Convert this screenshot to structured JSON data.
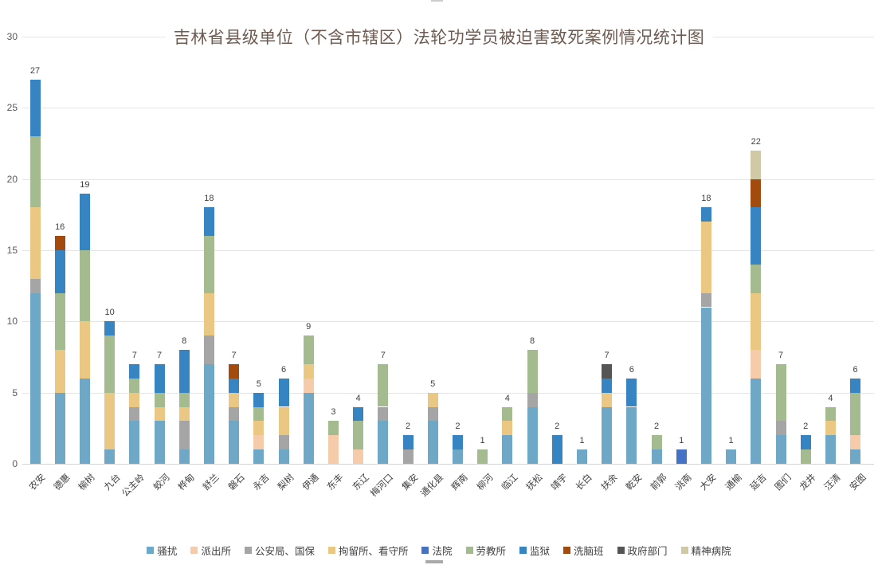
{
  "chart_data": {
    "type": "bar",
    "stacked": true,
    "title": "吉林省县级单位（不含市辖区）法轮功学员被迫害致死案例情况统计图",
    "xlabel": "",
    "ylabel": "",
    "ylim": [
      0,
      30
    ],
    "yticks": [
      0,
      5,
      10,
      15,
      20,
      25,
      30
    ],
    "grid": "horizontal",
    "legend_position": "bottom",
    "categories": [
      "农安",
      "德惠",
      "榆树",
      "九台",
      "公主岭",
      "蛟河",
      "桦甸",
      "舒兰",
      "磐石",
      "永吉",
      "梨树",
      "伊通",
      "东丰",
      "东辽",
      "梅河口",
      "集安",
      "通化县",
      "辉南",
      "柳河",
      "临江",
      "抚松",
      "靖宇",
      "长白",
      "扶余",
      "乾安",
      "前郭",
      "洮南",
      "大安",
      "通榆",
      "延吉",
      "图们",
      "龙井",
      "汪清",
      "安图"
    ],
    "totals": [
      27,
      16,
      19,
      10,
      7,
      7,
      8,
      18,
      7,
      5,
      6,
      9,
      3,
      4,
      7,
      2,
      5,
      2,
      1,
      4,
      8,
      2,
      1,
      7,
      6,
      2,
      1,
      18,
      1,
      22,
      7,
      2,
      4,
      6
    ],
    "series": [
      {
        "name": "骚扰",
        "color": "#6fa8c6",
        "values": [
          12,
          5,
          6,
          1,
          3,
          3,
          1,
          7,
          3,
          1,
          1,
          5,
          0,
          0,
          3,
          0,
          3,
          1,
          0,
          2,
          4,
          0,
          1,
          4,
          4,
          1,
          0,
          11,
          1,
          6,
          2,
          0,
          2,
          1
        ]
      },
      {
        "name": "派出所",
        "color": "#f6cbaa",
        "values": [
          0,
          0,
          0,
          0,
          0,
          0,
          0,
          0,
          0,
          1,
          0,
          1,
          2,
          1,
          0,
          0,
          0,
          0,
          0,
          0,
          0,
          0,
          0,
          0,
          0,
          0,
          0,
          0,
          0,
          2,
          0,
          0,
          0,
          1
        ]
      },
      {
        "name": "公安局、国保",
        "color": "#a5a5a5",
        "values": [
          1,
          0,
          0,
          0,
          1,
          0,
          2,
          2,
          1,
          0,
          1,
          0,
          0,
          0,
          1,
          1,
          1,
          0,
          0,
          0,
          1,
          0,
          0,
          0,
          0,
          0,
          0,
          1,
          0,
          0,
          1,
          0,
          0,
          0
        ]
      },
      {
        "name": "拘留所、看守所",
        "color": "#eac883",
        "values": [
          5,
          3,
          4,
          4,
          1,
          1,
          1,
          3,
          1,
          1,
          2,
          1,
          0,
          0,
          0,
          0,
          1,
          0,
          0,
          1,
          0,
          0,
          0,
          1,
          0,
          0,
          0,
          5,
          0,
          4,
          0,
          0,
          1,
          0
        ]
      },
      {
        "name": "法院",
        "color": "#4472c4",
        "values": [
          0,
          0,
          0,
          0,
          0,
          0,
          0,
          0,
          0,
          0,
          0,
          0,
          0,
          0,
          0,
          0,
          0,
          0,
          0,
          0,
          0,
          0,
          0,
          0,
          0,
          0,
          1,
          0,
          0,
          0,
          0,
          0,
          0,
          0
        ]
      },
      {
        "name": "劳教所",
        "color": "#a3bb8f",
        "values": [
          5,
          4,
          5,
          4,
          1,
          1,
          1,
          4,
          0,
          1,
          0,
          2,
          1,
          2,
          3,
          0,
          0,
          0,
          1,
          1,
          3,
          0,
          0,
          0,
          0,
          1,
          0,
          0,
          0,
          2,
          4,
          1,
          1,
          3
        ]
      },
      {
        "name": "监狱",
        "color": "#3784c3",
        "values": [
          4,
          3,
          4,
          1,
          1,
          2,
          3,
          2,
          1,
          1,
          2,
          0,
          0,
          1,
          0,
          1,
          0,
          1,
          0,
          0,
          0,
          2,
          0,
          1,
          2,
          0,
          0,
          1,
          0,
          4,
          0,
          1,
          0,
          1
        ]
      },
      {
        "name": "洗脑班",
        "color": "#a34b0d",
        "values": [
          0,
          1,
          0,
          0,
          0,
          0,
          0,
          0,
          1,
          0,
          0,
          0,
          0,
          0,
          0,
          0,
          0,
          0,
          0,
          0,
          0,
          0,
          0,
          0,
          0,
          0,
          0,
          0,
          0,
          2,
          0,
          0,
          0,
          0
        ]
      },
      {
        "name": "政府部门",
        "color": "#555555",
        "values": [
          0,
          0,
          0,
          0,
          0,
          0,
          0,
          0,
          0,
          0,
          0,
          0,
          0,
          0,
          0,
          0,
          0,
          0,
          0,
          0,
          0,
          0,
          0,
          1,
          0,
          0,
          0,
          0,
          0,
          0,
          0,
          0,
          0,
          0
        ]
      },
      {
        "name": "精神病院",
        "color": "#cfc9a5",
        "values": [
          0,
          0,
          0,
          0,
          0,
          0,
          0,
          0,
          0,
          0,
          0,
          0,
          0,
          0,
          0,
          0,
          0,
          0,
          0,
          0,
          0,
          0,
          0,
          0,
          0,
          0,
          0,
          0,
          0,
          2,
          0,
          0,
          0,
          0
        ]
      }
    ]
  }
}
